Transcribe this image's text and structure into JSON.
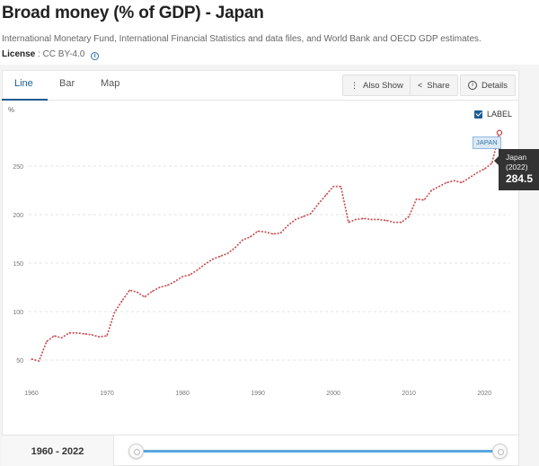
{
  "header": {
    "title": "Broad money (% of GDP) - Japan",
    "source": "International Monetary Fund, International Financial Statistics and data files, and World Bank and OECD GDP estimates.",
    "license_label": "License",
    "license_value": ": CC BY-4.0",
    "info_icon": "i"
  },
  "tabs": [
    {
      "label": "Line",
      "active": true
    },
    {
      "label": "Bar",
      "active": false
    },
    {
      "label": "Map",
      "active": false
    }
  ],
  "toolbar": {
    "also_show": "Also Show",
    "share": "Share",
    "details": "Details"
  },
  "label_toggle": {
    "text": "LABEL",
    "checked": true
  },
  "series_tag": "JAPAN",
  "tooltip": {
    "name": "Japan",
    "year": "(2022)",
    "value": "284.5"
  },
  "range": {
    "label_start": "1960",
    "label_sep": " - ",
    "label_end": "2022"
  },
  "colors": {
    "series": "#c9484b",
    "accent": "#1b5c92",
    "slider": "#5aa7df"
  },
  "chart_data": {
    "type": "line",
    "ylabel": "%",
    "xlim": [
      1960,
      2022
    ],
    "ylim": [
      25,
      290
    ],
    "yticks": [
      50,
      100,
      150,
      200,
      250
    ],
    "xticks": [
      1960,
      1970,
      1980,
      1990,
      2000,
      2010,
      2020
    ],
    "grid": "horizontal dashed",
    "series": [
      {
        "name": "Japan",
        "x": [
          1960,
          1961,
          1962,
          1963,
          1964,
          1965,
          1966,
          1967,
          1968,
          1969,
          1970,
          1971,
          1972,
          1973,
          1974,
          1975,
          1976,
          1977,
          1978,
          1979,
          1980,
          1981,
          1982,
          1983,
          1984,
          1985,
          1986,
          1987,
          1988,
          1989,
          1990,
          1991,
          1992,
          1993,
          1994,
          1995,
          1996,
          1997,
          1998,
          1999,
          2000,
          2001,
          2002,
          2003,
          2004,
          2005,
          2006,
          2007,
          2008,
          2009,
          2010,
          2011,
          2012,
          2013,
          2014,
          2015,
          2016,
          2017,
          2018,
          2019,
          2020,
          2021,
          2022
        ],
        "values": [
          51,
          49,
          69,
          75,
          73,
          78,
          78,
          77,
          76,
          74,
          75,
          99,
          111,
          122,
          120,
          115,
          121,
          125,
          127,
          131,
          136,
          138,
          143,
          149,
          154,
          157,
          160,
          166,
          174,
          177,
          183,
          182,
          180,
          181,
          189,
          195,
          198,
          201,
          211,
          220,
          229,
          229,
          192,
          195,
          196,
          195,
          195,
          194,
          192,
          192,
          198,
          216,
          215,
          225,
          229,
          233,
          235,
          233,
          238,
          243,
          247,
          253,
          284.5
        ]
      }
    ]
  }
}
